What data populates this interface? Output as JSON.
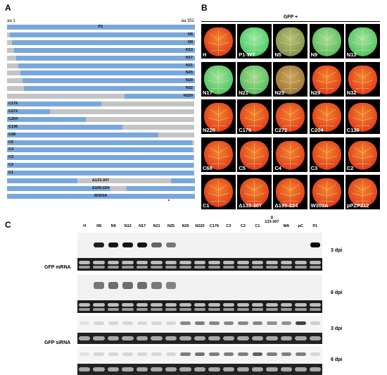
{
  "panel_letters": {
    "a": "A",
    "b": "B",
    "c": "C"
  },
  "panel_a": {
    "aa_start": "aa 1",
    "aa_end": "aa 352",
    "colors": {
      "kept": "#79a7dc",
      "deleted": "#c4c4c4",
      "mutation": "#e02020"
    },
    "constructs": [
      {
        "label": "P1",
        "kept": [
          [
            1,
            352
          ]
        ],
        "label_pos": "center"
      },
      {
        "label": "N5",
        "kept": [
          [
            6,
            352
          ]
        ],
        "label_pos": "right"
      },
      {
        "label": "N9",
        "kept": [
          [
            10,
            352
          ]
        ],
        "label_pos": "right"
      },
      {
        "label": "N13",
        "kept": [
          [
            14,
            352
          ]
        ],
        "label_pos": "right"
      },
      {
        "label": "N17",
        "kept": [
          [
            18,
            352
          ]
        ],
        "label_pos": "right"
      },
      {
        "label": "N21",
        "kept": [
          [
            22,
            352
          ]
        ],
        "label_pos": "right"
      },
      {
        "label": "N25",
        "kept": [
          [
            26,
            352
          ]
        ],
        "label_pos": "right"
      },
      {
        "label": "N29",
        "kept": [
          [
            30,
            352
          ]
        ],
        "label_pos": "right"
      },
      {
        "label": "N32",
        "kept": [
          [
            33,
            352
          ]
        ],
        "label_pos": "right"
      },
      {
        "label": "N220",
        "kept": [
          [
            221,
            352
          ]
        ],
        "label_pos": "right"
      },
      {
        "label": "C176",
        "kept": [
          [
            1,
            176
          ]
        ],
        "label_pos": "left"
      },
      {
        "label": "C272",
        "kept": [
          [
            1,
            80
          ]
        ],
        "label_pos": "left"
      },
      {
        "label": "C204",
        "kept": [
          [
            1,
            148
          ]
        ],
        "label_pos": "left"
      },
      {
        "label": "C136",
        "kept": [
          [
            1,
            216
          ]
        ],
        "label_pos": "left"
      },
      {
        "label": "C68",
        "kept": [
          [
            1,
            284
          ]
        ],
        "label_pos": "left"
      },
      {
        "label": "C5",
        "kept": [
          [
            1,
            347
          ]
        ],
        "label_pos": "left"
      },
      {
        "label": "C4",
        "kept": [
          [
            1,
            348
          ]
        ],
        "label_pos": "left"
      },
      {
        "label": "C3",
        "kept": [
          [
            1,
            349
          ]
        ],
        "label_pos": "left"
      },
      {
        "label": "C2",
        "kept": [
          [
            1,
            350
          ]
        ],
        "label_pos": "left"
      },
      {
        "label": "C1",
        "kept": [
          [
            1,
            351
          ]
        ],
        "label_pos": "left"
      },
      {
        "label": "Δ133-307",
        "kept": [
          [
            1,
            132
          ],
          [
            308,
            352
          ]
        ],
        "label_pos": "center"
      },
      {
        "label": "Δ195-224",
        "kept": [
          [
            1,
            194
          ],
          [
            225,
            352
          ]
        ],
        "label_pos": "center"
      },
      {
        "label": "W303A",
        "kept": [
          [
            1,
            352
          ]
        ],
        "label_pos": "center",
        "mutation_aa": 303
      }
    ]
  },
  "panel_b": {
    "title": "GFP +",
    "leaves": [
      {
        "label": "H",
        "green": 0.0
      },
      {
        "label": "P1-WT",
        "green": 0.95
      },
      {
        "label": "N5",
        "green": 0.6
      },
      {
        "label": "N9",
        "green": 0.85
      },
      {
        "label": "N13",
        "green": 0.9
      },
      {
        "label": "N17",
        "green": 0.9
      },
      {
        "label": "N21",
        "green": 0.85
      },
      {
        "label": "N25",
        "green": 0.4
      },
      {
        "label": "N29",
        "green": 0.0
      },
      {
        "label": "N32",
        "green": 0.0
      },
      {
        "label": "N220",
        "green": 0.0
      },
      {
        "label": "C176",
        "green": 0.0
      },
      {
        "label": "C272",
        "green": 0.0
      },
      {
        "label": "C204",
        "green": 0.0
      },
      {
        "label": "C136",
        "green": 0.0
      },
      {
        "label": "C68",
        "green": 0.0
      },
      {
        "label": "C5",
        "green": 0.0
      },
      {
        "label": "C4",
        "green": 0.0
      },
      {
        "label": "C3",
        "green": 0.0
      },
      {
        "label": "C2",
        "green": 0.0
      },
      {
        "label": "C1",
        "green": 0.0
      },
      {
        "label": "Δ133-307",
        "green": 0.0
      },
      {
        "label": "Δ195-224",
        "green": 0.0
      },
      {
        "label": "W303A",
        "green": 0.0
      },
      {
        "label": "pPZP212",
        "green": 0.0
      }
    ]
  },
  "panel_c": {
    "lanes": [
      "H",
      "N5",
      "N9",
      "N13",
      "N17",
      "N21",
      "N25",
      "N29",
      "N220",
      "C176",
      "C3",
      "C2",
      "C1",
      "Δ\n133-307",
      "WA",
      "pC",
      "P1"
    ],
    "groups": [
      {
        "label": "GFP mRNA",
        "blots": [
          {
            "time": "3 dpi",
            "type": "northern",
            "intensity": [
              0.0,
              0.9,
              0.95,
              0.95,
              0.95,
              0.6,
              0.5,
              0.0,
              0.0,
              0.0,
              0.0,
              0.0,
              0.0,
              0.0,
              0.0,
              0.0,
              1.0
            ]
          },
          {
            "time": "6 dpi",
            "type": "northern",
            "intensity": [
              0.0,
              0.5,
              0.55,
              0.55,
              0.55,
              0.5,
              0.45,
              0.0,
              0.0,
              0.0,
              0.0,
              0.0,
              0.0,
              0.0,
              0.0,
              0.0,
              0.0
            ]
          }
        ]
      },
      {
        "label": "GFP siRNA",
        "blots": [
          {
            "time": "3 dpi",
            "type": "small",
            "intensity": [
              0.05,
              0.1,
              0.1,
              0.1,
              0.1,
              0.1,
              0.1,
              0.5,
              0.55,
              0.5,
              0.5,
              0.5,
              0.5,
              0.45,
              0.45,
              0.85,
              0.15
            ]
          },
          {
            "time": "6 dpi",
            "type": "small",
            "intensity": [
              0.05,
              0.1,
              0.1,
              0.1,
              0.1,
              0.1,
              0.1,
              0.55,
              0.6,
              0.55,
              0.55,
              0.55,
              0.7,
              0.55,
              0.55,
              0.55,
              0.1
            ]
          }
        ]
      }
    ]
  }
}
